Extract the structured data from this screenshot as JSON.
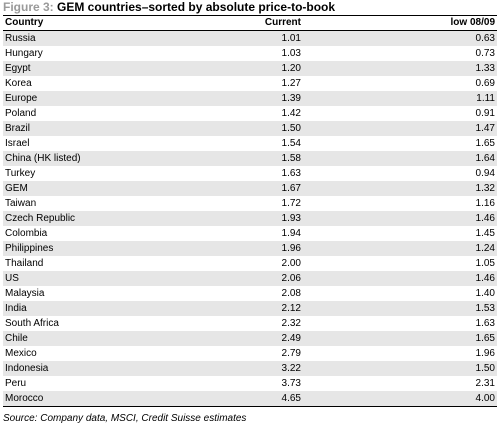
{
  "figure": {
    "label": "Figure 3:",
    "title": "GEM countries–sorted by absolute price-to-book",
    "source": "Source: Company data, MSCI, Credit Suisse estimates"
  },
  "table": {
    "columns": [
      "Country",
      "Current",
      "low 08/09"
    ],
    "rows": [
      [
        "Russia",
        "1.01",
        "0.63"
      ],
      [
        "Hungary",
        "1.03",
        "0.73"
      ],
      [
        "Egypt",
        "1.20",
        "1.33"
      ],
      [
        "Korea",
        "1.27",
        "0.69"
      ],
      [
        "Europe",
        "1.39",
        "1.11"
      ],
      [
        "Poland",
        "1.42",
        "0.91"
      ],
      [
        "Brazil",
        "1.50",
        "1.47"
      ],
      [
        "Israel",
        "1.54",
        "1.65"
      ],
      [
        "China (HK listed)",
        "1.58",
        "1.64"
      ],
      [
        "Turkey",
        "1.63",
        "0.94"
      ],
      [
        "GEM",
        "1.67",
        "1.32"
      ],
      [
        "Taiwan",
        "1.72",
        "1.16"
      ],
      [
        "Czech Republic",
        "1.93",
        "1.46"
      ],
      [
        "Colombia",
        "1.94",
        "1.45"
      ],
      [
        "Philippines",
        "1.96",
        "1.24"
      ],
      [
        "Thailand",
        "2.00",
        "1.05"
      ],
      [
        "US",
        "2.06",
        "1.46"
      ],
      [
        "Malaysia",
        "2.08",
        "1.40"
      ],
      [
        "India",
        "2.12",
        "1.53"
      ],
      [
        "South Africa",
        "2.32",
        "1.63"
      ],
      [
        "Chile",
        "2.49",
        "1.65"
      ],
      [
        "Mexico",
        "2.79",
        "1.96"
      ],
      [
        "Indonesia",
        "3.22",
        "1.50"
      ],
      [
        "Peru",
        "3.73",
        "2.31"
      ],
      [
        "Morocco",
        "4.65",
        "4.00"
      ]
    ]
  }
}
